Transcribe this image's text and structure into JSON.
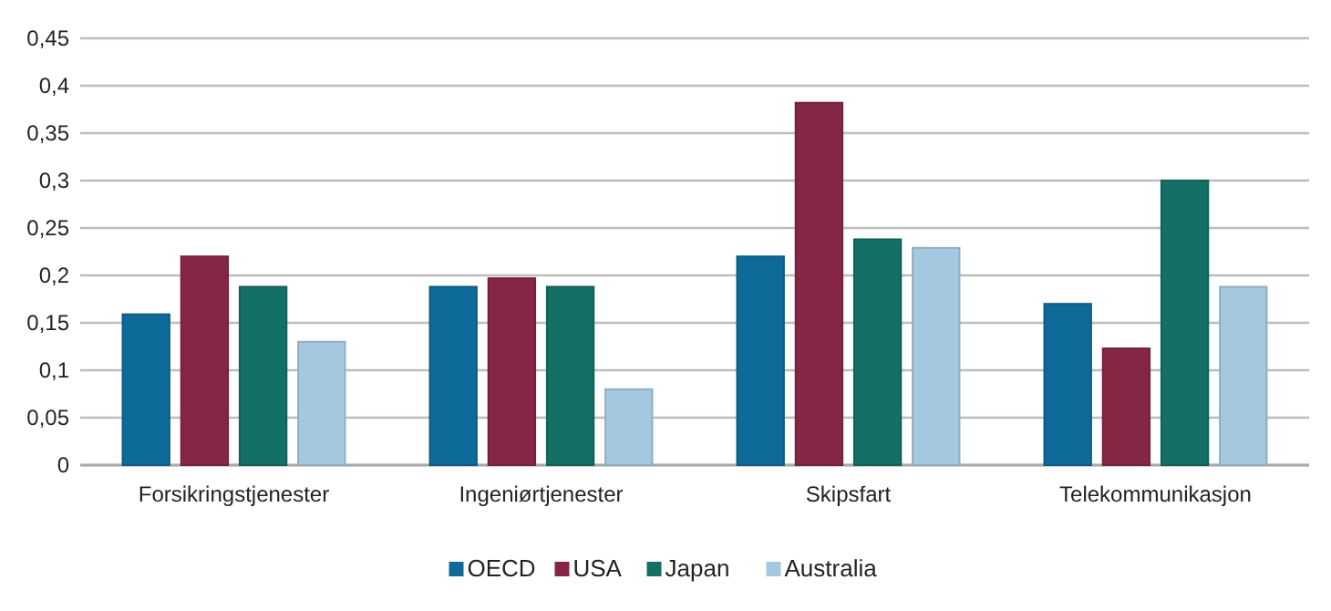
{
  "chart_data": {
    "type": "bar",
    "categories": [
      "Forsikringstjenester",
      "Ingeniørtjenester",
      "Skipsfart",
      "Telekommunikasjon"
    ],
    "series": [
      {
        "name": "OECD",
        "color": "#0e6a98",
        "values": [
          0.159,
          0.188,
          0.22,
          0.17
        ]
      },
      {
        "name": "USA",
        "color": "#862645",
        "values": [
          0.22,
          0.197,
          0.382,
          0.123
        ]
      },
      {
        "name": "Japan",
        "color": "#147064",
        "values": [
          0.188,
          0.188,
          0.238,
          0.3
        ]
      },
      {
        "name": "Australia",
        "color": "#a5c8e1",
        "values": [
          0.13,
          0.08,
          0.229,
          0.188
        ]
      }
    ],
    "ylim": [
      0,
      0.45
    ],
    "yticks": [
      0,
      {
        "value": 0.05,
        "label": "0,05"
      },
      {
        "value": 0.1,
        "label": "0,1"
      },
      {
        "value": 0.15,
        "label": "0,15"
      },
      {
        "value": 0.2,
        "label": "0,2"
      },
      {
        "value": 0.25,
        "label": "0,25"
      },
      {
        "value": 0.3,
        "label": "0,3"
      },
      {
        "value": 0.35,
        "label": "0,35"
      },
      {
        "value": 0.4,
        "label": "0,4"
      },
      {
        "value": 0.45,
        "label": "0,45"
      }
    ],
    "grid": "y",
    "legend": "bottom"
  }
}
